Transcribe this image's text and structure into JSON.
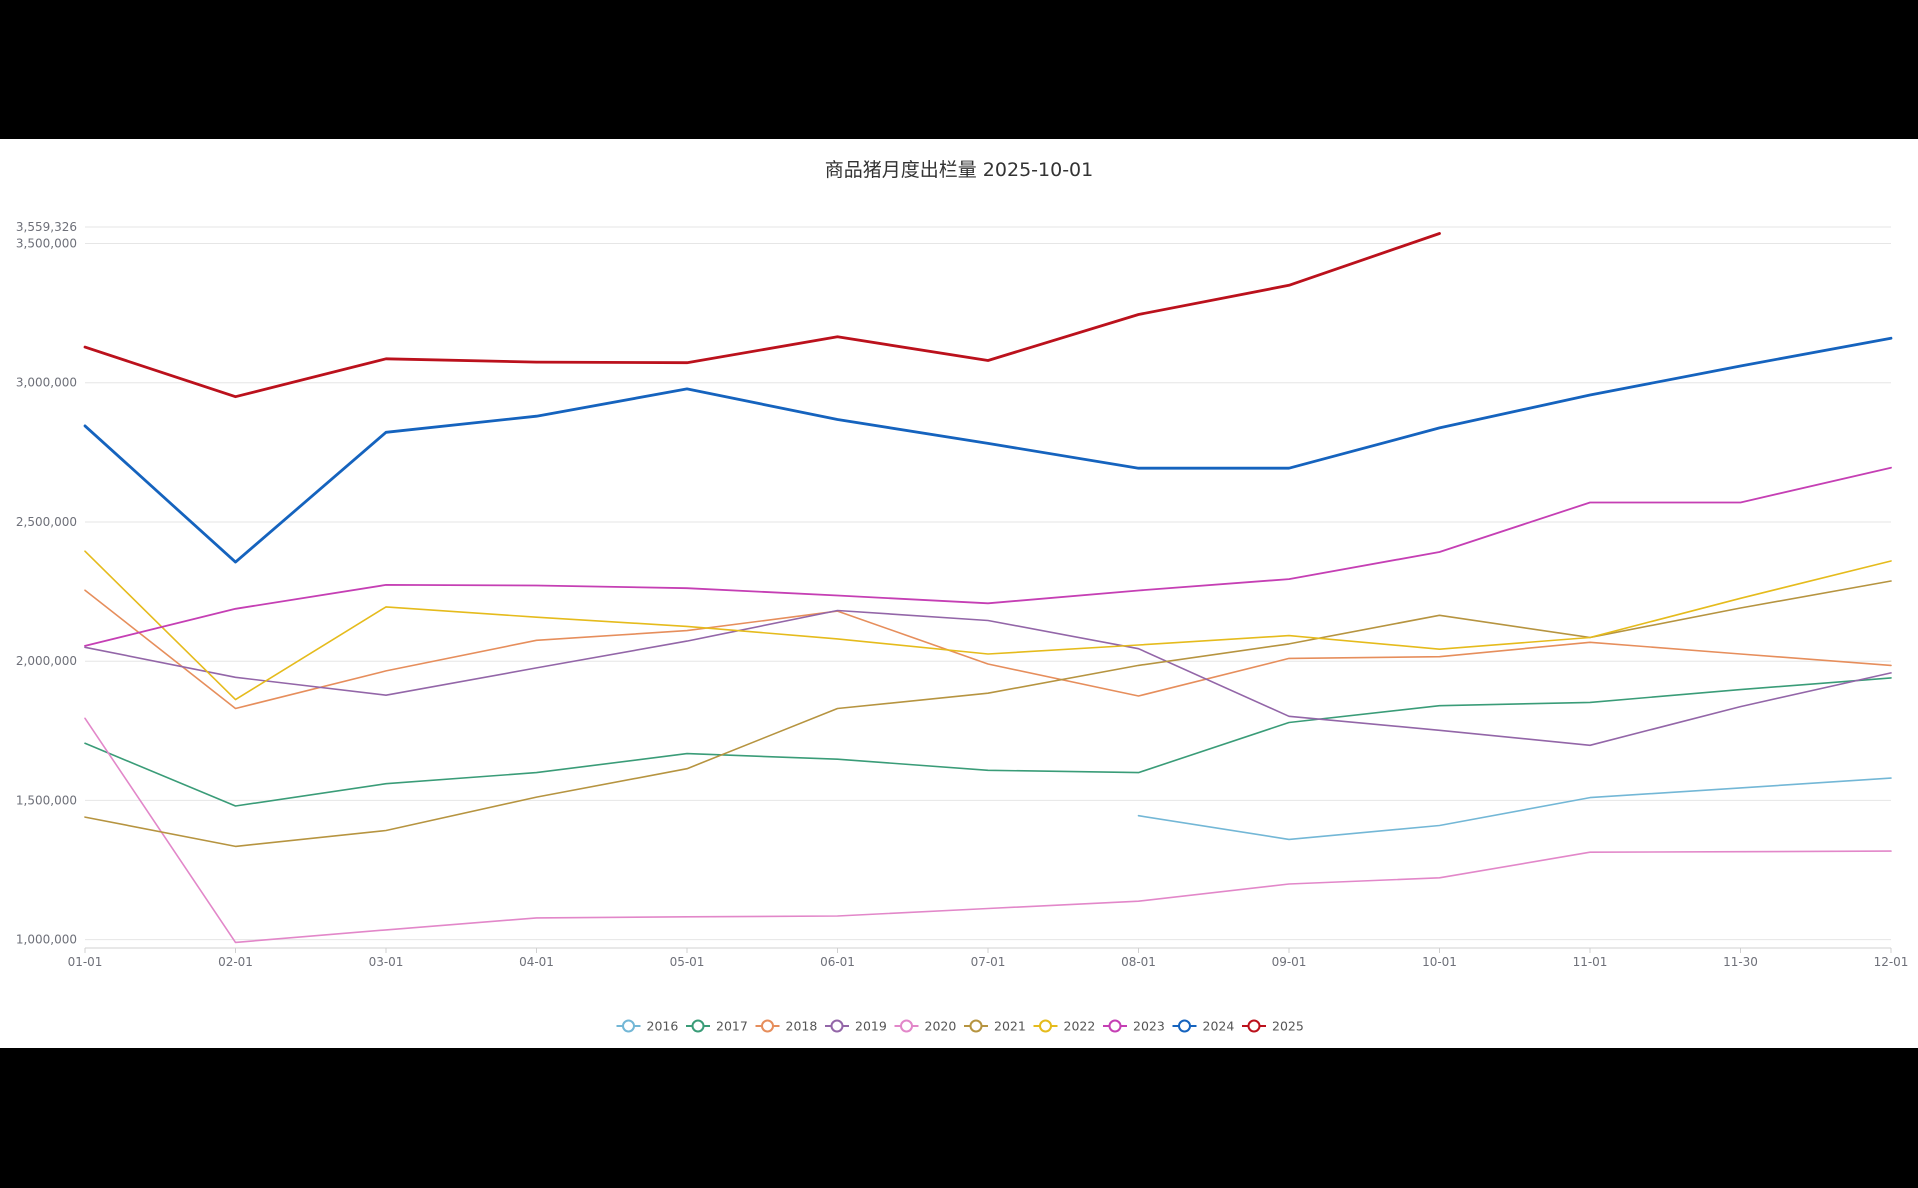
{
  "chart_data": {
    "type": "line",
    "title": "商品猪月度出栏量 2025-10-01",
    "categories": [
      "01-01",
      "02-01",
      "03-01",
      "04-01",
      "05-01",
      "06-01",
      "07-01",
      "08-01",
      "09-01",
      "10-01",
      "11-01",
      "11-30",
      "12-01"
    ],
    "xlabel": "",
    "ylabel": "",
    "ylim": [
      970000,
      3559326
    ],
    "y_ticks": [
      1000000,
      1500000,
      2000000,
      2500000,
      3000000,
      3500000,
      3559326
    ],
    "y_tick_labels": [
      "1,000,000",
      "1,500,000",
      "2,000,000",
      "2,500,000",
      "3,000,000",
      "3,500,000",
      "3,559,326"
    ],
    "grid": true,
    "legend_position": "bottom-center",
    "series": [
      {
        "name": "2016",
        "color": "#73b7d6",
        "width": 1.6,
        "values": [
          null,
          null,
          null,
          null,
          null,
          null,
          null,
          1445000,
          1360000,
          1410000,
          1510000,
          1545000,
          1580000
        ]
      },
      {
        "name": "2017",
        "color": "#3a9c78",
        "width": 1.6,
        "values": [
          1705000,
          1480000,
          1560000,
          1600000,
          1668000,
          1648000,
          1608000,
          1600000,
          1780000,
          1840000,
          1852000,
          1898000,
          1940000
        ]
      },
      {
        "name": "2018",
        "color": "#e68e5c",
        "width": 1.6,
        "values": [
          2255000,
          1830000,
          1965000,
          2075000,
          2110000,
          2180000,
          1990000,
          1875000,
          2010000,
          2016000,
          2068000,
          2026000,
          1985000
        ]
      },
      {
        "name": "2019",
        "color": "#9366a8",
        "width": 1.6,
        "values": [
          2050000,
          1942000,
          1878000,
          1976000,
          2072000,
          2182000,
          2146000,
          2045000,
          1802000,
          1752000,
          1698000,
          1837000,
          1958000
        ]
      },
      {
        "name": "2020",
        "color": "#e287c9",
        "width": 1.6,
        "values": [
          1795000,
          990000,
          1035000,
          1078000,
          1082000,
          1085000,
          1112000,
          1138000,
          1200000,
          1222000,
          1314000,
          1316000,
          1318000
        ]
      },
      {
        "name": "2021",
        "color": "#b69440",
        "width": 1.6,
        "values": [
          1440000,
          1335000,
          1392000,
          1512000,
          1614000,
          1830000,
          1885000,
          1985000,
          2062000,
          2165000,
          2085000,
          2191000,
          2288000
        ]
      },
      {
        "name": "2022",
        "color": "#e5bb1c",
        "width": 1.6,
        "values": [
          2395000,
          1862000,
          2195000,
          2158000,
          2125000,
          2080000,
          2026000,
          2058000,
          2092000,
          2043000,
          2085000,
          2226000,
          2360000
        ]
      },
      {
        "name": "2023",
        "color": "#c53fb4",
        "width": 1.8,
        "values": [
          2055000,
          2188000,
          2274000,
          2272000,
          2262000,
          2236000,
          2208000,
          2254000,
          2295000,
          2392000,
          2570000,
          2570000,
          2695000
        ]
      },
      {
        "name": "2024",
        "color": "#1563be",
        "width": 2.8,
        "values": [
          2845000,
          2356000,
          2822000,
          2880000,
          2978000,
          2868000,
          2782000,
          2693000,
          2693000,
          2838000,
          2956000,
          3060000,
          3160000
        ]
      },
      {
        "name": "2025",
        "color": "#bb111c",
        "width": 2.8,
        "values": [
          3128000,
          2950000,
          3086000,
          3074000,
          3072000,
          3165000,
          3080000,
          3245000,
          3350000,
          3536000,
          null,
          null,
          null
        ]
      }
    ]
  }
}
